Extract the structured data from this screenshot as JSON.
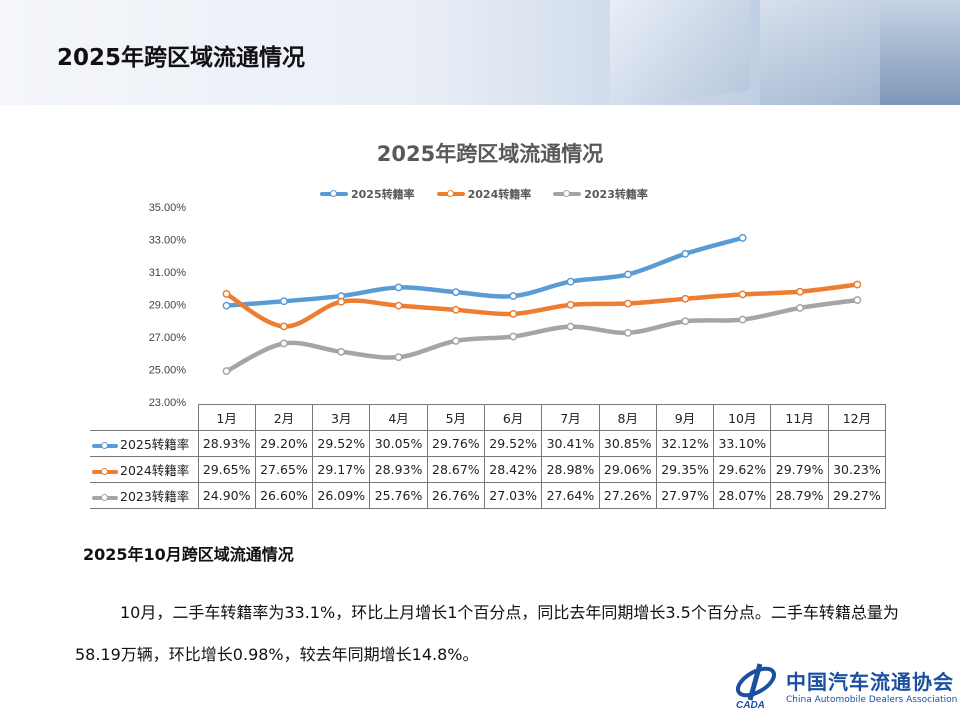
{
  "header": {
    "title": "2025年跨区域流通情况"
  },
  "chart_data": {
    "type": "line",
    "title": "2025年跨区域流通情况",
    "categories": [
      "1月",
      "2月",
      "3月",
      "4月",
      "5月",
      "6月",
      "7月",
      "8月",
      "9月",
      "10月",
      "11月",
      "12月"
    ],
    "ylim": [
      23,
      35
    ],
    "yticks": [
      "23.00%",
      "25.00%",
      "27.00%",
      "29.00%",
      "31.00%",
      "33.00%",
      "35.00%"
    ],
    "ytick_values": [
      23,
      25,
      27,
      29,
      31,
      33,
      35
    ],
    "legend_position": "top",
    "grid": false,
    "series": [
      {
        "name": "2025转籍率",
        "color": "#5b9bd5",
        "values": [
          28.93,
          29.2,
          29.52,
          30.05,
          29.76,
          29.52,
          30.41,
          30.85,
          32.12,
          33.1,
          null,
          null
        ],
        "labels": [
          "28.93%",
          "29.20%",
          "29.52%",
          "30.05%",
          "29.76%",
          "29.52%",
          "30.41%",
          "30.85%",
          "32.12%",
          "33.10%",
          "",
          ""
        ]
      },
      {
        "name": "2024转籍率",
        "color": "#ed7d31",
        "values": [
          29.65,
          27.65,
          29.17,
          28.93,
          28.67,
          28.42,
          28.98,
          29.06,
          29.35,
          29.62,
          29.79,
          30.23
        ],
        "labels": [
          "29.65%",
          "27.65%",
          "29.17%",
          "28.93%",
          "28.67%",
          "28.42%",
          "28.98%",
          "29.06%",
          "29.35%",
          "29.62%",
          "29.79%",
          "30.23%"
        ]
      },
      {
        "name": "2023转籍率",
        "color": "#a5a5a5",
        "values": [
          24.9,
          26.6,
          26.09,
          25.76,
          26.76,
          27.03,
          27.64,
          27.26,
          27.97,
          28.07,
          28.79,
          29.27
        ],
        "labels": [
          "24.90%",
          "26.60%",
          "26.09%",
          "25.76%",
          "26.76%",
          "27.03%",
          "27.64%",
          "27.26%",
          "27.97%",
          "28.07%",
          "28.79%",
          "29.27%"
        ]
      }
    ]
  },
  "section": {
    "title": "2025年10月跨区域流通情况",
    "paragraph": "10月，二手车转籍率为33.1%，环比上月增长1个百分点，同比去年同期增长3.5个百分点。二手车转籍总量为58.19万辆，环比增长0.98%，较去年同期增长14.8%。"
  },
  "logo": {
    "cn": "中国汽车流通协会",
    "en": "China Automobile Dealers Association",
    "mark": "CADA"
  }
}
